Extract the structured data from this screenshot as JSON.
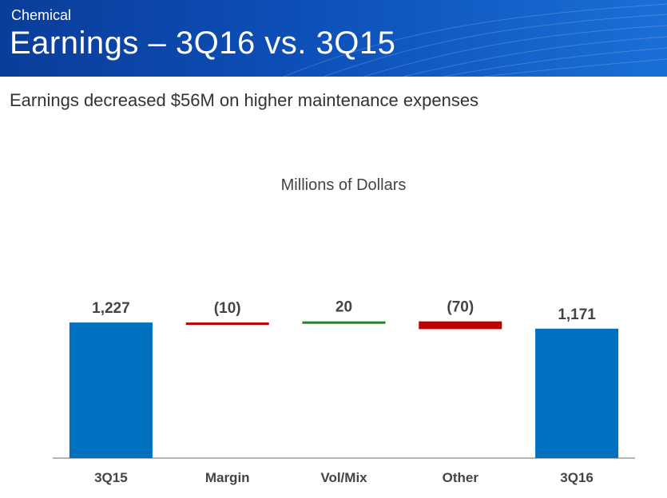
{
  "header": {
    "section": "Chemical",
    "title": "Earnings – 3Q16 vs. 3Q15"
  },
  "subtitle": "Earnings decreased $56M on higher maintenance expenses",
  "colors": {
    "total": "#0070c0",
    "increase": "#1a8a1a",
    "decrease": "#c00000",
    "header": "#0d4fb8"
  },
  "chart_data": {
    "type": "bar",
    "subtype": "waterfall",
    "title": "Millions of Dollars",
    "categories": [
      "3Q15",
      "Margin",
      "Vol/Mix",
      "Other",
      "3Q16"
    ],
    "values": [
      1227,
      -10,
      20,
      -70,
      1171
    ],
    "kinds": [
      "total",
      "decrease",
      "increase",
      "decrease",
      "total"
    ],
    "data_labels": [
      "1,227",
      "(10)",
      "20",
      "(70)",
      "1,171"
    ],
    "ylim": [
      0,
      1400
    ],
    "grid": false
  }
}
